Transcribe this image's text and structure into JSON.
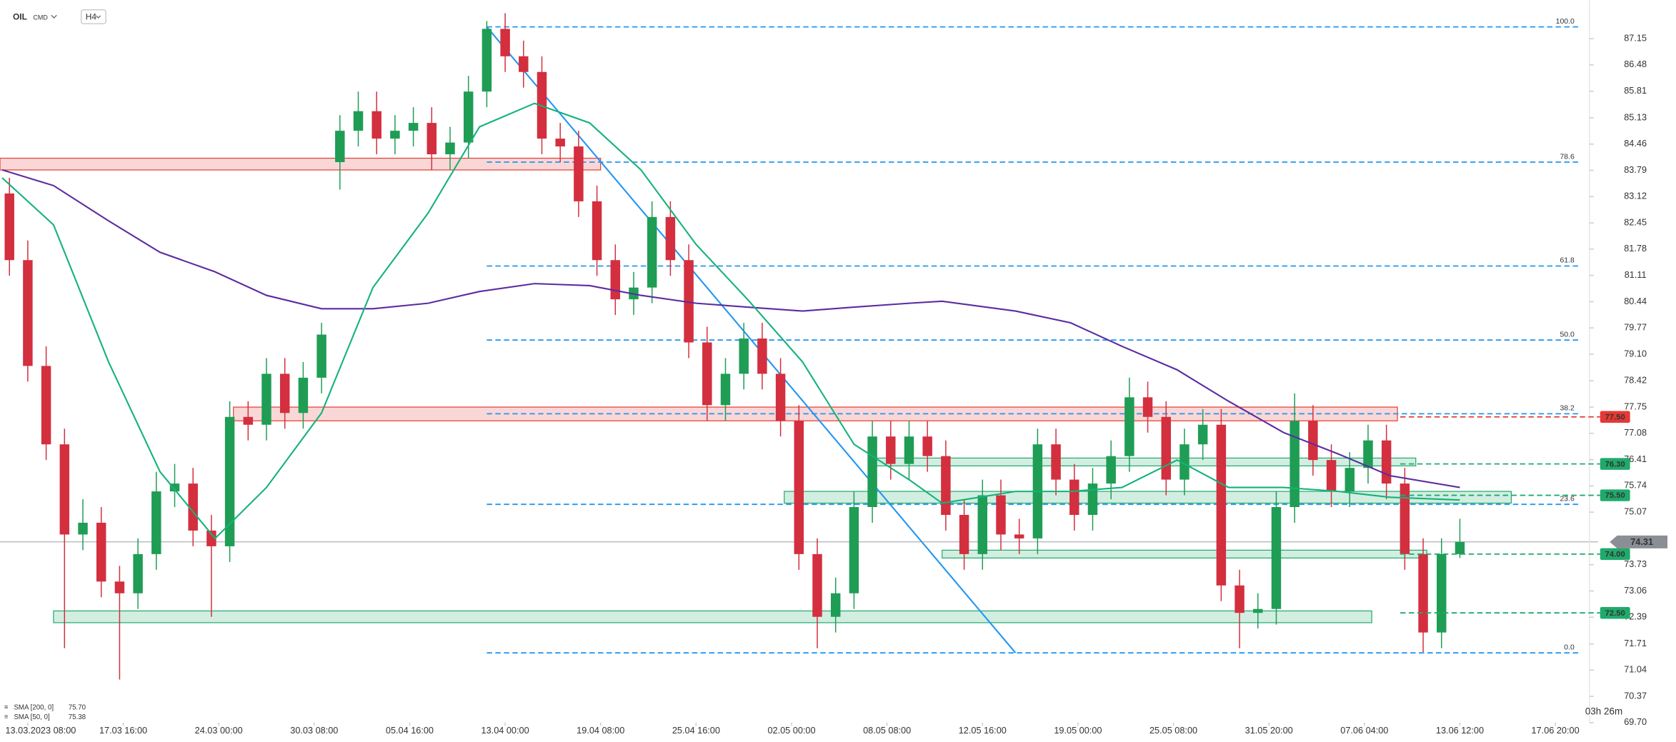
{
  "header": {
    "symbol": "OIL",
    "market": "CMD",
    "interval": "H4"
  },
  "countdown": "03h 26m",
  "chart_data": {
    "type": "candlestick",
    "xlim": [
      -7.57,
      424.7
    ],
    "ylim": [
      69.73,
      88.13
    ],
    "xticks": [
      {
        "value": 0,
        "label": "13.03.2023 08:00"
      },
      {
        "value": 26,
        "label": "17.03 16:00"
      },
      {
        "value": 52,
        "label": "24.03 00:00"
      },
      {
        "value": 78,
        "label": "30.03 08:00"
      },
      {
        "value": 104,
        "label": "05.04 16:00"
      },
      {
        "value": 130,
        "label": "13.04 00:00"
      },
      {
        "value": 156,
        "label": "19.04 08:00"
      },
      {
        "value": 182,
        "label": "25.04 16:00"
      },
      {
        "value": 208,
        "label": "02.05 00:00"
      },
      {
        "value": 234,
        "label": "08.05 08:00"
      },
      {
        "value": 260,
        "label": "12.05 16:00"
      },
      {
        "value": 286,
        "label": "19.05 00:00"
      },
      {
        "value": 312,
        "label": "25.05 08:00"
      },
      {
        "value": 338,
        "label": "31.05 20:00"
      },
      {
        "value": 364,
        "label": "07.06 04:00"
      },
      {
        "value": 390,
        "label": "13.06 12:00"
      },
      {
        "value": 416,
        "label": "17.06 20:00"
      }
    ],
    "yticks": [
      87.15,
      86.48,
      85.81,
      85.13,
      84.46,
      83.79,
      83.12,
      82.45,
      81.78,
      81.11,
      80.44,
      79.77,
      {
        "value": 79.1,
        "label": "79.10"
      },
      78.42,
      77.75,
      77.08,
      76.41,
      75.74,
      75.07,
      73.73,
      73.06,
      72.39,
      71.71,
      71.04,
      70.37,
      {
        "value": 69.7,
        "label": "69.70"
      }
    ],
    "up_color": "#1f9d55",
    "down_color": "#d32f3f",
    "x": [
      -5,
      0,
      5,
      10,
      15,
      20,
      25,
      30,
      35,
      40,
      45,
      50,
      55,
      60,
      65,
      70,
      75,
      80,
      85,
      90,
      95,
      100,
      105,
      110,
      115,
      120,
      125,
      130,
      135,
      140,
      145,
      150,
      155,
      160,
      165,
      170,
      175,
      180,
      185,
      190,
      195,
      200,
      205,
      210,
      215,
      220,
      225,
      230,
      235,
      240,
      245,
      250,
      255,
      260,
      265,
      270,
      275,
      280,
      285,
      290,
      295,
      300,
      305,
      310,
      315,
      320,
      325,
      330,
      335,
      340,
      345,
      350,
      355,
      360,
      365,
      370,
      375,
      380,
      385,
      390
    ],
    "open": [
      83.2,
      81.5,
      78.8,
      76.8,
      74.5,
      74.8,
      73.3,
      73.0,
      74.0,
      75.6,
      75.8,
      74.6,
      74.2,
      77.5,
      77.3,
      78.6,
      77.6,
      78.5,
      84.0,
      84.8,
      85.3,
      84.6,
      84.8,
      85.0,
      84.2,
      84.5,
      85.8,
      87.4,
      86.7,
      86.3,
      84.6,
      84.4,
      83.0,
      81.5,
      80.5,
      80.8,
      82.6,
      81.5,
      79.4,
      77.8,
      78.6,
      79.5,
      78.6,
      77.4,
      74.0,
      72.4,
      73.0,
      75.2,
      77.0,
      76.3,
      77.0,
      76.5,
      75.0,
      74.0,
      75.5,
      74.5,
      74.4,
      76.8,
      75.9,
      75.0,
      75.8,
      76.5,
      78.0,
      77.5,
      75.9,
      76.8,
      77.3,
      73.2,
      72.5,
      72.6,
      75.2,
      77.4,
      76.4,
      75.6,
      76.2,
      76.9,
      75.8,
      74.0,
      72.0,
      74.0
    ],
    "high": [
      83.6,
      82.0,
      79.3,
      77.2,
      75.4,
      75.2,
      73.7,
      74.4,
      76.1,
      76.3,
      76.2,
      75.0,
      77.9,
      77.9,
      79.0,
      79.0,
      78.9,
      79.9,
      85.2,
      85.8,
      85.8,
      85.2,
      85.4,
      85.4,
      84.9,
      86.2,
      87.6,
      87.8,
      87.1,
      86.7,
      85.0,
      84.8,
      83.4,
      81.9,
      81.2,
      83.0,
      83.0,
      81.9,
      79.8,
      79.0,
      79.9,
      79.9,
      79.0,
      77.8,
      74.4,
      73.4,
      75.6,
      77.4,
      77.4,
      77.4,
      77.4,
      76.9,
      75.4,
      75.9,
      75.9,
      74.9,
      77.2,
      77.2,
      76.3,
      76.2,
      76.9,
      78.5,
      78.4,
      77.9,
      77.2,
      77.7,
      77.7,
      73.6,
      73.0,
      75.6,
      78.1,
      77.8,
      76.8,
      76.6,
      77.3,
      77.3,
      76.2,
      74.4,
      74.4,
      74.9
    ],
    "low": [
      81.1,
      78.4,
      76.4,
      71.6,
      74.1,
      72.9,
      70.8,
      72.6,
      73.6,
      75.2,
      74.2,
      72.4,
      73.8,
      76.9,
      76.9,
      77.2,
      77.2,
      78.1,
      83.3,
      84.4,
      84.2,
      84.2,
      84.4,
      83.8,
      83.8,
      84.1,
      85.4,
      86.3,
      85.9,
      84.2,
      84.0,
      82.6,
      81.1,
      80.1,
      80.1,
      80.4,
      81.1,
      79.0,
      77.4,
      77.4,
      78.2,
      78.2,
      77.0,
      73.6,
      71.6,
      72.0,
      72.6,
      74.8,
      75.9,
      75.9,
      76.1,
      74.6,
      73.6,
      73.6,
      74.1,
      74.0,
      74.0,
      75.5,
      74.6,
      74.6,
      75.4,
      76.1,
      77.1,
      75.5,
      75.5,
      76.4,
      72.8,
      71.6,
      72.1,
      72.2,
      74.8,
      76.0,
      75.2,
      75.2,
      75.8,
      75.4,
      73.6,
      71.5,
      71.6,
      73.9
    ],
    "close": [
      81.5,
      78.8,
      76.8,
      74.5,
      74.8,
      73.3,
      73.0,
      74.0,
      75.6,
      75.8,
      74.6,
      74.2,
      77.5,
      77.3,
      78.6,
      77.6,
      78.5,
      79.6,
      84.8,
      85.3,
      84.6,
      84.8,
      85.0,
      84.2,
      84.5,
      85.8,
      87.4,
      86.7,
      86.3,
      84.6,
      84.4,
      83.0,
      81.5,
      80.5,
      80.8,
      82.6,
      81.5,
      79.4,
      77.8,
      78.6,
      79.5,
      78.6,
      77.4,
      74.0,
      72.4,
      73.0,
      75.2,
      77.0,
      76.3,
      77.0,
      76.5,
      75.0,
      74.0,
      75.5,
      74.5,
      74.4,
      76.8,
      75.9,
      75.0,
      75.8,
      76.5,
      78.0,
      77.5,
      75.9,
      76.8,
      77.3,
      73.2,
      72.5,
      72.6,
      75.2,
      77.4,
      76.4,
      75.6,
      76.2,
      76.9,
      75.8,
      74.0,
      72.0,
      74.0,
      74.31
    ],
    "last_price": {
      "value": 74.31,
      "color": "#8a8f96"
    },
    "series": [
      {
        "name": "SMA [200, 0]",
        "color": "#5b2ca0",
        "value_label": "75.70",
        "x": [
          -7,
          7,
          22,
          36,
          51,
          65,
          80,
          94,
          109,
          123,
          138,
          153,
          167,
          182,
          196,
          211,
          225,
          240,
          249,
          269,
          284,
          298,
          313,
          327,
          342,
          357,
          371,
          390
        ],
        "values": [
          83.8,
          83.4,
          82.5,
          81.7,
          81.2,
          80.6,
          80.26,
          80.26,
          80.4,
          80.7,
          80.9,
          80.85,
          80.6,
          80.4,
          80.3,
          80.2,
          80.3,
          80.4,
          80.45,
          80.2,
          79.9,
          79.3,
          78.7,
          77.9,
          77.1,
          76.55,
          76.0,
          75.7
        ]
      },
      {
        "name": "SMA [50, 0]",
        "color": "#15b27a",
        "value_label": "75.38",
        "x": [
          -7,
          7,
          22,
          36,
          51,
          65,
          80,
          94,
          109,
          123,
          138,
          153,
          167,
          182,
          196,
          211,
          225,
          240,
          249,
          269,
          284,
          298,
          313,
          327,
          342,
          357,
          371,
          390
        ],
        "values": [
          83.6,
          82.4,
          78.9,
          76.1,
          74.4,
          75.7,
          77.6,
          80.8,
          82.7,
          84.9,
          85.5,
          85.0,
          83.8,
          81.9,
          80.5,
          78.9,
          76.8,
          75.9,
          75.3,
          75.6,
          75.6,
          75.7,
          76.4,
          75.7,
          75.7,
          75.6,
          75.45,
          75.38
        ]
      }
    ],
    "fib_color": "#2196f3",
    "fib_x": [
      125,
      422.5
    ],
    "fib_levels": [
      {
        "label": "100.0",
        "value": 87.45
      },
      {
        "label": "78.6",
        "value": 84.0
      },
      {
        "label": "61.8",
        "value": 81.35
      },
      {
        "label": "50.0",
        "value": 79.46
      },
      {
        "label": "38.2",
        "value": 77.58
      },
      {
        "label": "23.6",
        "value": 75.27
      },
      {
        "label": "0.0",
        "value": 71.48
      }
    ],
    "trendline": {
      "color": "#2196f3",
      "x": [
        125,
        269
      ],
      "values": [
        87.45,
        71.48
      ]
    },
    "zones": [
      {
        "color": "#e53935",
        "x": [
          -8,
          156
        ],
        "values": [
          84.1,
          83.8
        ]
      },
      {
        "color": "#e53935",
        "x": [
          56,
          373
        ],
        "values": [
          77.75,
          77.4
        ]
      },
      {
        "color": "#1faa6b",
        "x": [
          231,
          378
        ],
        "values": [
          76.45,
          76.25
        ]
      },
      {
        "color": "#1faa6b",
        "x": [
          206,
          404
        ],
        "values": [
          75.6,
          75.3
        ]
      },
      {
        "color": "#1faa6b",
        "x": [
          249,
          381
        ],
        "values": [
          74.1,
          73.9
        ]
      },
      {
        "color": "#1faa6b",
        "x": [
          7,
          366
        ],
        "values": [
          72.55,
          72.25
        ]
      }
    ],
    "levels": [
      {
        "value": 77.5,
        "label": "77.50",
        "color": "#e53935"
      },
      {
        "value": 76.3,
        "label": "76.30",
        "color": "#1faa6b"
      },
      {
        "value": 75.5,
        "label": "75.50",
        "color": "#1faa6b"
      },
      {
        "value": 74.0,
        "label": "74.00",
        "color": "#1faa6b"
      },
      {
        "value": 72.5,
        "label": "72.50",
        "color": "#1faa6b"
      }
    ]
  }
}
